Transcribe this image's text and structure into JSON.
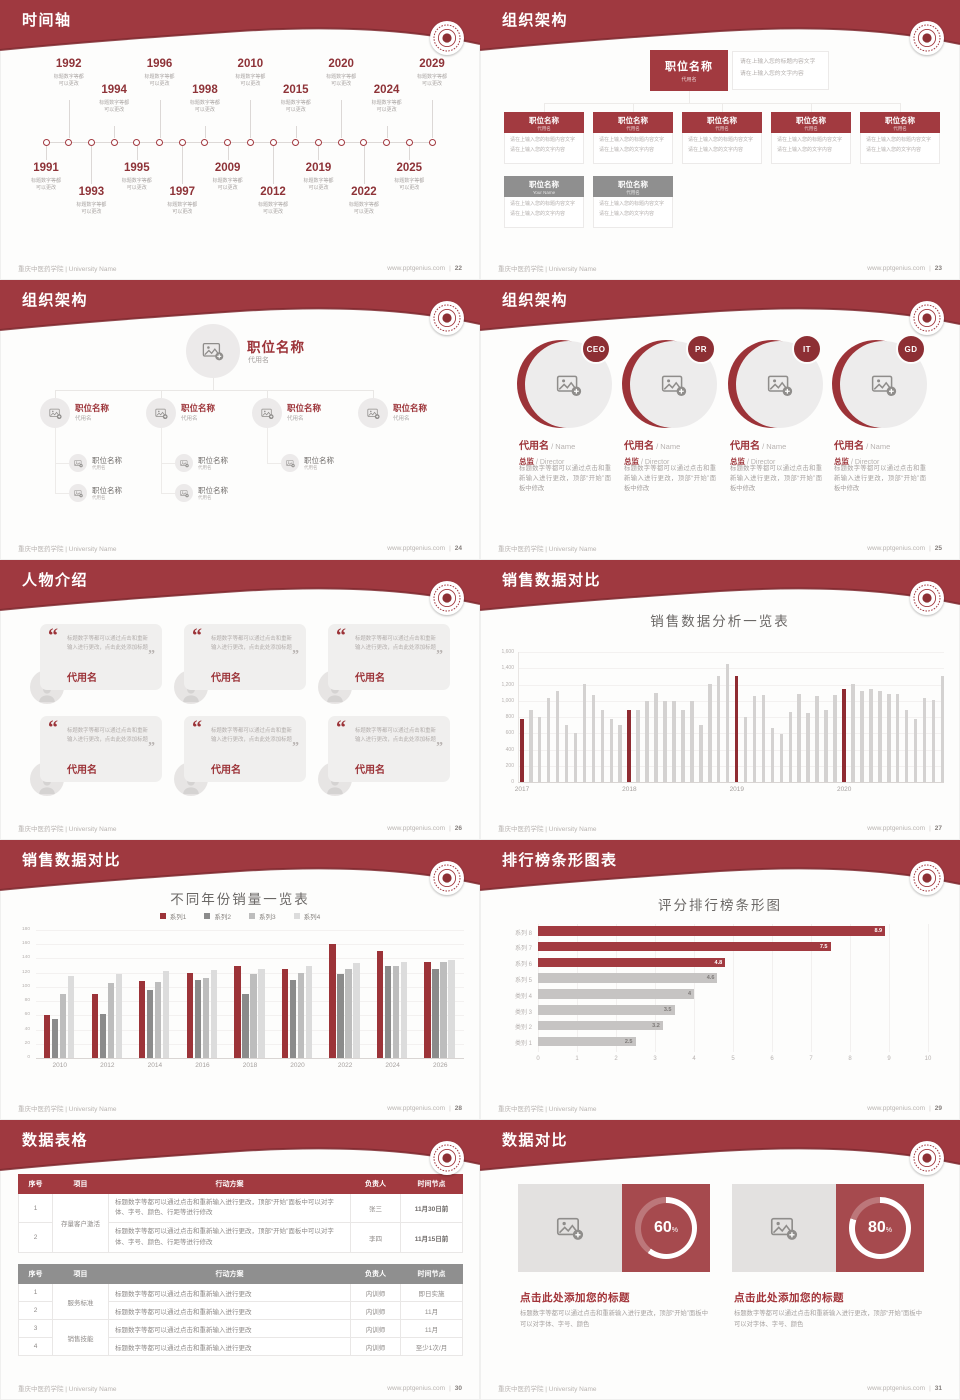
{
  "colors": {
    "header_red": "#9f3940",
    "header_edge": "#7e282e",
    "accent_red": "#9c3338",
    "maroon_text": "#8e3338",
    "bar_red": "#8f2b31",
    "bar_gray": "#d4d2d1",
    "box_red": "#a64a4e",
    "table_header_red": "#a23a40",
    "table_header_gray": "#8f8f8f"
  },
  "footer": {
    "left": "重庆中医药学院 | University Name",
    "site": "www.pptgenius.com",
    "sep": "|"
  },
  "slides": [
    {
      "title": "时间轴",
      "page": "22",
      "note": "标题数字等都\n可以更改",
      "years_top": [
        "1992",
        "1994",
        "1996",
        "1998",
        "2010",
        "2015",
        "2020",
        "2024",
        "2029"
      ],
      "years_bottom": [
        "1991",
        "1993",
        "1995",
        "1997",
        "2009",
        "2012",
        "2019",
        "2022",
        "2025"
      ]
    },
    {
      "title": "组织架构",
      "page": "23",
      "root": {
        "title": "职位名称",
        "subtitle": "代用名"
      },
      "note": "请在上输入您的标题内容文字\n请在上输入您的文字内容",
      "desc": "请在上输入您的标题内容文字\n请在上输入您的文字内容",
      "row1": [
        {
          "title": "职位名称",
          "subtitle": "代用名"
        },
        {
          "title": "职位名称",
          "subtitle": "代用名"
        },
        {
          "title": "职位名称",
          "subtitle": "代用名"
        },
        {
          "title": "职位名称",
          "subtitle": "代用名"
        },
        {
          "title": "职位名称",
          "subtitle": "代用名"
        }
      ],
      "row2": [
        {
          "title": "职位名称",
          "subtitle": "Your Name"
        },
        {
          "title": "职位名称",
          "subtitle": "代用名"
        }
      ]
    },
    {
      "title": "组织架构",
      "page": "24",
      "root": {
        "title": "职位名称",
        "subtitle": "代用名"
      },
      "branches": [
        {
          "title": "职位名称",
          "subtitle": "代用名",
          "subs": [
            {
              "title": "职位名称",
              "subtitle": "代用名"
            },
            {
              "title": "职位名称",
              "subtitle": "代用名"
            }
          ]
        },
        {
          "title": "职位名称",
          "subtitle": "代用名",
          "subs": [
            {
              "title": "职位名称",
              "subtitle": "代用名"
            },
            {
              "title": "职位名称",
              "subtitle": "代用名"
            }
          ]
        },
        {
          "title": "职位名称",
          "subtitle": "代用名",
          "subs": [
            {
              "title": "职位名称",
              "subtitle": "代用名"
            }
          ]
        },
        {
          "title": "职位名称",
          "subtitle": "代用名",
          "subs": []
        }
      ]
    },
    {
      "title": "组织架构",
      "page": "25",
      "members": [
        {
          "badge": "CEO",
          "name": "代用名",
          "name_en": "Name",
          "role": "总监",
          "role_en": "Director",
          "desc": "标题数字等都可以通过点击和重新输入进行更改，顶部“开始”面板中修改"
        },
        {
          "badge": "PR",
          "name": "代用名",
          "name_en": "Name",
          "role": "总监",
          "role_en": "Director",
          "desc": "标题数字等都可以通过点击和重新输入进行更改，顶部“开始”面板中修改"
        },
        {
          "badge": "IT",
          "name": "代用名",
          "name_en": "Name",
          "role": "总监",
          "role_en": "Director",
          "desc": "标题数字等都可以通过点击和重新输入进行更改，顶部“开始”面板中修改"
        },
        {
          "badge": "GD",
          "name": "代用名",
          "name_en": "Name",
          "role": "总监",
          "role_en": "Director",
          "desc": "标题数字等都可以通过点击和重新输入进行更改，顶部“开始”面板中修改"
        }
      ]
    },
    {
      "title": "人物介绍",
      "page": "26",
      "cards": [
        {
          "quote": "标题数字等都可以通过点击和重新输入进行更改，点击此处添加标题",
          "name": "代用名"
        },
        {
          "quote": "标题数字等都可以通过点击和重新输入进行更改，点击此处添加标题",
          "name": "代用名"
        },
        {
          "quote": "标题数字等都可以通过点击和重新输入进行更改，点击此处添加标题",
          "name": "代用名"
        },
        {
          "quote": "标题数字等都可以通过点击和重新输入进行更改，点击此处添加标题",
          "name": "代用名"
        },
        {
          "quote": "标题数字等都可以通过点击和重新输入进行更改，点击此处添加标题",
          "name": "代用名"
        },
        {
          "quote": "标题数字等都可以通过点击和重新输入进行更改，点击此处添加标题",
          "name": "代用名"
        }
      ]
    },
    {
      "title": "销售数据对比",
      "page": "27",
      "chart_ref": 0
    },
    {
      "title": "销售数据对比",
      "page": "28",
      "chart_ref": 1
    },
    {
      "title": "排行榜条形图表",
      "page": "29",
      "chart_ref": 2
    },
    {
      "title": "数据表格",
      "page": "30",
      "tables": [
        {
          "style": "red",
          "headers": [
            "序号",
            "项目",
            "行动方案",
            "负责人",
            "时间节点"
          ],
          "project": "存量客户激活",
          "rows": [
            {
              "no": "1",
              "action": "标题数字等都可以通过点击和重新输入进行更改，顶部“开始”面板中可以对字体、字号、颜色、行距等进行修改",
              "owner": "张三",
              "time": "11月30日前"
            },
            {
              "no": "2",
              "action": "标题数字等都可以通过点击和重新输入进行更改，顶部“开始”面板中可以对字体、字号、颜色、行距等进行修改",
              "owner": "李四",
              "time": "11月15日前"
            }
          ]
        },
        {
          "style": "gray",
          "headers": [
            "序号",
            "项目",
            "行动方案",
            "负责人",
            "时间节点"
          ],
          "groups": [
            {
              "project": "服务标准",
              "rows": [
                {
                  "no": "1",
                  "action": "标题数字等都可以通过点击和重新输入进行更改",
                  "owner": "内训师",
                  "time": "即日实施"
                },
                {
                  "no": "2",
                  "action": "标题数字等都可以通过点击和重新输入进行更改",
                  "owner": "内训师",
                  "time": "11月"
                }
              ]
            },
            {
              "project": "销售技能",
              "rows": [
                {
                  "no": "3",
                  "action": "标题数字等都可以通过点击和重新输入进行更改",
                  "owner": "内训师",
                  "time": "11月"
                },
                {
                  "no": "4",
                  "action": "标题数字等都可以通过点击和重新输入进行更改",
                  "owner": "内训师",
                  "time": "至少1次/月"
                }
              ]
            }
          ]
        }
      ]
    },
    {
      "title": "数据对比",
      "page": "31",
      "panels": [
        {
          "percent": "60",
          "unit": "%",
          "title": "点击此处添加您的标题",
          "desc": "标题数字等都可以通过点击和重新输入进行更改，顶部“开始”面板中可以对字体、字号、颜色"
        },
        {
          "percent": "80",
          "unit": "%",
          "title": "点击此处添加您的标题",
          "desc": "标题数字等都可以通过点击和重新输入进行更改，顶部“开始”面板中可以对字体、字号、颜色"
        }
      ]
    }
  ],
  "chart_data": [
    {
      "type": "bar",
      "title": "销售数据分析一览表",
      "xlabel": "",
      "ylabel": "",
      "ylim": [
        0,
        1600
      ],
      "ytick_step": 200,
      "x_groups": [
        "2017",
        "2018",
        "2019",
        "2020"
      ],
      "bars_per_group": 12,
      "values": [
        780,
        890,
        800,
        1040,
        1125,
        700,
        600,
        1210,
        1075,
        890,
        780,
        700,
        890,
        890,
        1000,
        1090,
        1000,
        1000,
        890,
        1000,
        700,
        1205,
        1300,
        1450,
        1300,
        800,
        1060,
        1065,
        665,
        590,
        865,
        1080,
        855,
        1060,
        890,
        1065,
        1145,
        1210,
        1125,
        1140,
        1125,
        1080,
        1080,
        890,
        780,
        1030,
        1010,
        1300
      ],
      "highlight_indices": [
        0,
        12,
        24,
        36
      ],
      "highlight_color": "#8f2b31",
      "bar_color": "#d4d2d1",
      "grid": true,
      "legend_position": "none"
    },
    {
      "type": "bar",
      "title": "不同年份销量一览表",
      "xlabel": "",
      "ylabel": "",
      "categories": [
        "2010",
        "2012",
        "2014",
        "2016",
        "2018",
        "2020",
        "2022",
        "2024",
        "2026"
      ],
      "series": [
        {
          "name": "系列1",
          "color": "#9c3338",
          "values": [
            60,
            90,
            108,
            120,
            130,
            125,
            160,
            150,
            135
          ]
        },
        {
          "name": "系列2",
          "color": "#8b8b8b",
          "values": [
            55,
            62,
            95,
            110,
            90,
            110,
            118,
            130,
            125
          ]
        },
        {
          "name": "系列3",
          "color": "#bdbdbd",
          "values": [
            90,
            105,
            107,
            112,
            118,
            120,
            125,
            130,
            135
          ]
        },
        {
          "name": "系列4",
          "color": "#dcdcdc",
          "values": [
            115,
            118,
            122,
            124,
            125,
            130,
            133,
            135,
            138
          ]
        }
      ],
      "ylim": [
        0,
        180
      ],
      "ytick_step": 20,
      "grid": true,
      "legend_position": "top"
    },
    {
      "type": "bar",
      "orientation": "horizontal",
      "title": "评分排行榜条形图",
      "categories": [
        "系列 8",
        "系列 7",
        "系列 6",
        "系列 5",
        "类别 4",
        "类别 3",
        "类别 2",
        "类别 1"
      ],
      "values": [
        8.9,
        7.5,
        4.8,
        4.6,
        4,
        3.5,
        3.2,
        2.5
      ],
      "colors": [
        "#a23a40",
        "#a23a40",
        "#a23a40",
        "#c6c4c3",
        "#c6c4c3",
        "#c6c4c3",
        "#c6c4c3",
        "#c6c4c3"
      ],
      "xlim": [
        0,
        10
      ],
      "xtick_step": 1,
      "grid": true,
      "legend_position": "none"
    },
    {
      "type": "donut",
      "values": [
        60,
        80
      ],
      "unit": "%",
      "arc_color": "#ffffff",
      "track_color": "rgba(255,255,255,0.25)"
    }
  ]
}
